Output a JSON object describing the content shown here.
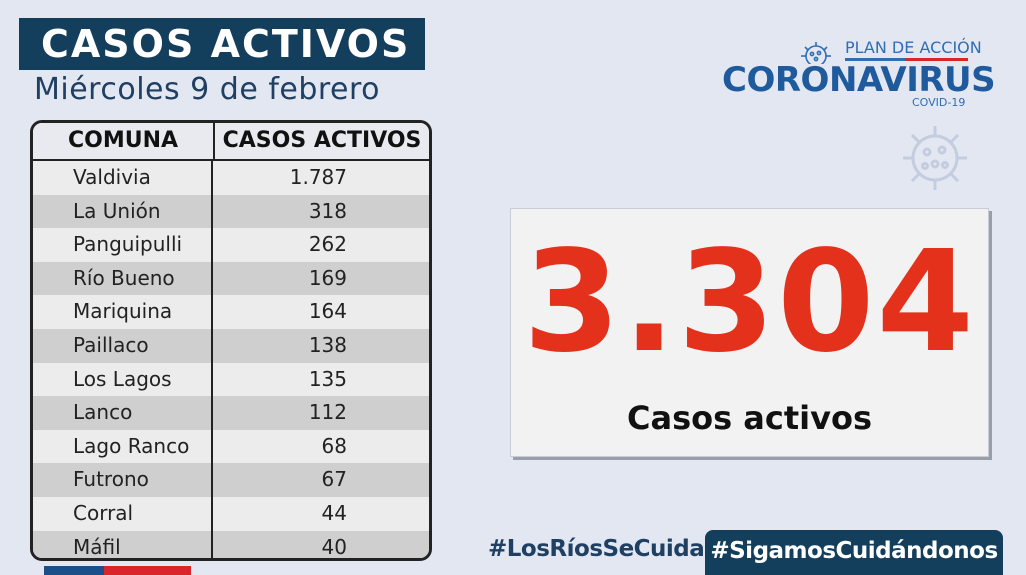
{
  "header": {
    "title": "CASOS ACTIVOS",
    "date": "Miércoles 9 de febrero"
  },
  "table": {
    "columns": [
      "COMUNA",
      "CASOS ACTIVOS"
    ],
    "rows": [
      {
        "comuna": "Valdivia",
        "casos": "1.787"
      },
      {
        "comuna": "La Unión",
        "casos": "318"
      },
      {
        "comuna": "Panguipulli",
        "casos": "262"
      },
      {
        "comuna": "Río Bueno",
        "casos": "169"
      },
      {
        "comuna": "Mariquina",
        "casos": "164"
      },
      {
        "comuna": "Paillaco",
        "casos": "138"
      },
      {
        "comuna": "Los Lagos",
        "casos": "135"
      },
      {
        "comuna": "Lanco",
        "casos": "112"
      },
      {
        "comuna": "Lago Ranco",
        "casos": "68"
      },
      {
        "comuna": "Futrono",
        "casos": "67"
      },
      {
        "comuna": "Corral",
        "casos": "44"
      },
      {
        "comuna": "Máfil",
        "casos": "40"
      }
    ]
  },
  "logo": {
    "plan": "PLAN DE ACCIÓN",
    "name": "CORONAVIRUS",
    "sub": "COVID-19",
    "icon": "virus-icon"
  },
  "total": {
    "value": "3.304",
    "label": "Casos activos"
  },
  "hashtags": {
    "first": "#LosRíosSeCuida",
    "second": "#SigamosCuidándonos"
  },
  "colors": {
    "background": "#e3e7f2",
    "navy": "#143f5c",
    "brand_blue": "#1e5a9c",
    "accent_red": "#e4311b"
  }
}
